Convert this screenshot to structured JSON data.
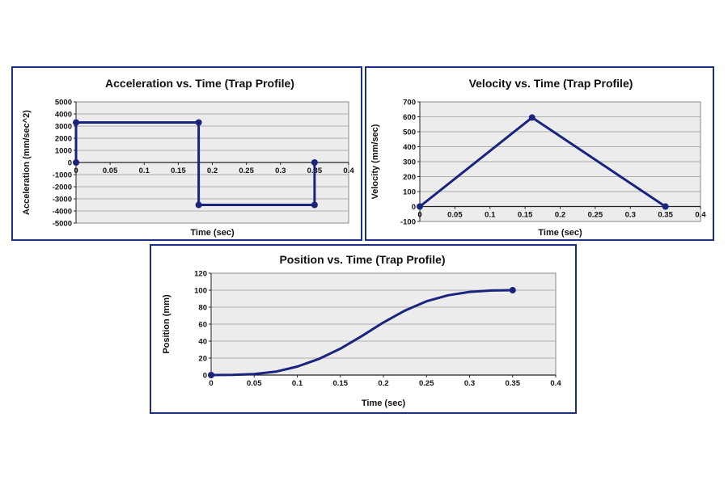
{
  "colors": {
    "border": "#1f2f86",
    "series": "#1a237e",
    "plot_bg": "#ececec",
    "grid": "#9a9a9a"
  },
  "chart_data": [
    {
      "id": "acc",
      "type": "line",
      "title": "Acceleration vs. Time (Trap Profile)",
      "xlabel": "Time (sec)",
      "ylabel": "Acceleration (mm/sec^2)",
      "xlim": [
        0,
        0.4
      ],
      "ylim": [
        -5000,
        5000
      ],
      "xticks": [
        0,
        0.05,
        0.1,
        0.15,
        0.2,
        0.25,
        0.3,
        0.35,
        0.4
      ],
      "yticks": [
        5000,
        4000,
        3000,
        2000,
        1000,
        0,
        -1000,
        -2000,
        -3000,
        -4000,
        -5000
      ],
      "xtick_labels": [
        "0",
        "0.05",
        "0.1",
        "0.15",
        "0.2",
        "0.25",
        "0.3",
        "0.35",
        "0.4"
      ],
      "ytick_labels": [
        "5000",
        "4000",
        "3000",
        "2000",
        "1000",
        "0",
        "-1000",
        "-2000",
        "-3000",
        "-4000",
        "-5000"
      ],
      "grid": true,
      "x_axis_at": 0,
      "series": [
        {
          "points": [
            [
              0,
              0
            ],
            [
              0,
              3300
            ],
            [
              0.18,
              3300
            ],
            [
              0.18,
              -3500
            ],
            [
              0.35,
              -3500
            ],
            [
              0.35,
              0
            ]
          ],
          "markers": [
            [
              0,
              0
            ],
            [
              0,
              3300
            ],
            [
              0.18,
              3300
            ],
            [
              0.18,
              -3500
            ],
            [
              0.35,
              -3500
            ],
            [
              0.35,
              0
            ]
          ]
        }
      ]
    },
    {
      "id": "vel",
      "type": "line",
      "title": "Velocity vs. Time (Trap Profile)",
      "xlabel": "Time (sec)",
      "ylabel": "Velocity (mm/sec)",
      "xlim": [
        0,
        0.4
      ],
      "ylim": [
        -100,
        700
      ],
      "xticks": [
        0,
        0.05,
        0.1,
        0.15,
        0.2,
        0.25,
        0.3,
        0.35,
        0.4
      ],
      "yticks": [
        700,
        600,
        500,
        400,
        300,
        200,
        100,
        0,
        -100
      ],
      "xtick_labels": [
        "0",
        "0.05",
        "0.1",
        "0.15",
        "0.2",
        "0.25",
        "0.3",
        "0.35",
        "0.4"
      ],
      "ytick_labels": [
        "700",
        "600",
        "500",
        "400",
        "300",
        "200",
        "100",
        "0",
        "-100"
      ],
      "grid": true,
      "x_axis_at": 0,
      "series": [
        {
          "points": [
            [
              0,
              0
            ],
            [
              0.16,
              595
            ],
            [
              0.35,
              0
            ]
          ],
          "markers": [
            [
              0,
              0
            ],
            [
              0.16,
              595
            ],
            [
              0.35,
              0
            ]
          ]
        }
      ]
    },
    {
      "id": "pos",
      "type": "line",
      "title": "Position vs. Time (Trap Profile)",
      "xlabel": "Time (sec)",
      "ylabel": "Position (mm)",
      "xlim": [
        0,
        0.4
      ],
      "ylim": [
        0,
        120
      ],
      "xticks": [
        0,
        0.05,
        0.1,
        0.15,
        0.2,
        0.25,
        0.3,
        0.35,
        0.4
      ],
      "yticks": [
        120,
        100,
        80,
        60,
        40,
        20,
        0
      ],
      "xtick_labels": [
        "0",
        "0.05",
        "0.1",
        "0.15",
        "0.2",
        "0.25",
        "0.3",
        "0.35",
        "0.4"
      ],
      "ytick_labels": [
        "120",
        "100",
        "80",
        "60",
        "40",
        "20",
        "0"
      ],
      "grid": true,
      "x_axis_at": 0,
      "series": [
        {
          "points": [
            [
              0,
              0
            ],
            [
              0.025,
              0.3
            ],
            [
              0.05,
              1.2
            ],
            [
              0.075,
              4
            ],
            [
              0.1,
              10
            ],
            [
              0.125,
              19
            ],
            [
              0.15,
              31
            ],
            [
              0.175,
              46
            ],
            [
              0.2,
              62
            ],
            [
              0.225,
              76
            ],
            [
              0.25,
              87
            ],
            [
              0.275,
              94
            ],
            [
              0.3,
              98
            ],
            [
              0.325,
              99.6
            ],
            [
              0.35,
              100
            ]
          ],
          "markers": [
            [
              0,
              0
            ],
            [
              0.35,
              100
            ]
          ]
        }
      ]
    }
  ]
}
